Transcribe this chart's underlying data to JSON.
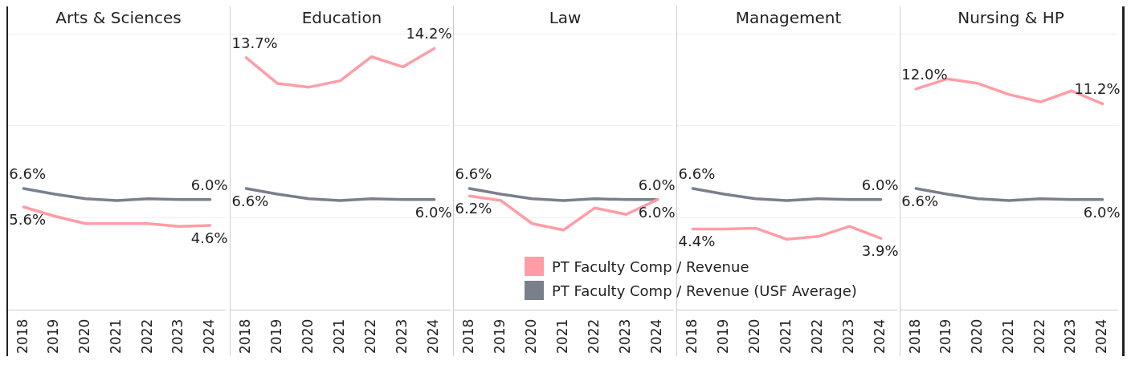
{
  "chart_data": [
    {
      "type": "line",
      "title": "Arts & Sciences",
      "categories": [
        "2018",
        "2019",
        "2020",
        "2021",
        "2022",
        "2023",
        "2024"
      ],
      "ylim": [
        0,
        15
      ],
      "yticks": [
        {
          "value": 0,
          "label": null
        },
        {
          "value": 5,
          "label": null
        },
        {
          "value": 10,
          "label": null
        },
        {
          "value": 15,
          "label": null
        }
      ],
      "grid": "y",
      "tick_labels": "x",
      "legend": false,
      "series": [
        {
          "color": "#ff9da7",
          "values": [
            5.6,
            5.1,
            4.7,
            4.7,
            4.7,
            4.55,
            4.6
          ],
          "value_labels": [
            "5.6%",
            null,
            null,
            null,
            null,
            null,
            "4.6%"
          ]
        },
        {
          "color": "#79808c",
          "values": [
            6.6,
            6.3,
            6.05,
            5.95,
            6.05,
            6.0,
            6.0
          ],
          "value_labels": [
            "6.6%",
            null,
            null,
            null,
            null,
            null,
            "6.0%"
          ]
        }
      ]
    },
    {
      "type": "line",
      "title": "Education",
      "categories": [
        "2018",
        "2019",
        "2020",
        "2021",
        "2022",
        "2023",
        "2024"
      ],
      "ylim": [
        0,
        15
      ],
      "yticks": [
        {
          "value": 0,
          "label": null
        },
        {
          "value": 5,
          "label": null
        },
        {
          "value": 10,
          "label": null
        },
        {
          "value": 15,
          "label": null
        }
      ],
      "grid": "y",
      "tick_labels": "x",
      "legend": false,
      "series": [
        {
          "color": "#ff9da7",
          "values": [
            13.7,
            12.3,
            12.1,
            12.45,
            13.75,
            13.2,
            14.2
          ],
          "value_labels": [
            "13.7%",
            null,
            null,
            null,
            null,
            null,
            "14.2%"
          ]
        },
        {
          "color": "#79808c",
          "values": [
            6.6,
            6.3,
            6.05,
            5.95,
            6.05,
            6.0,
            6.0
          ],
          "value_labels": [
            "6.6%",
            null,
            null,
            null,
            null,
            null,
            "6.0%"
          ]
        }
      ]
    },
    {
      "type": "line",
      "title": "Law",
      "categories": [
        "2018",
        "2019",
        "2020",
        "2021",
        "2022",
        "2023",
        "2024"
      ],
      "ylim": [
        0,
        15
      ],
      "yticks": [
        {
          "value": 0,
          "label": null
        },
        {
          "value": 5,
          "label": null
        },
        {
          "value": 10,
          "label": null
        },
        {
          "value": 15,
          "label": null
        }
      ],
      "grid": "y",
      "tick_labels": "x",
      "legend": "bottom right",
      "series": [
        {
          "name": "PT Faculty Comp / Revenue",
          "color": "#ff9da7",
          "values": [
            6.2,
            5.95,
            4.7,
            4.35,
            5.55,
            5.2,
            6.0
          ],
          "value_labels": [
            "6.2%",
            null,
            null,
            null,
            null,
            null,
            "6.0%"
          ]
        },
        {
          "name": "PT Faculty Comp / Revenue (USF Average)",
          "color": "#79808c",
          "values": [
            6.6,
            6.3,
            6.05,
            5.95,
            6.05,
            6.0,
            6.0
          ],
          "value_labels": [
            "6.6%",
            null,
            null,
            null,
            null,
            null,
            "6.0%"
          ]
        }
      ]
    },
    {
      "type": "line",
      "title": "Management",
      "categories": [
        "2018",
        "2019",
        "2020",
        "2021",
        "2022",
        "2023",
        "2024"
      ],
      "ylim": [
        0,
        15
      ],
      "yticks": [
        {
          "value": 0,
          "label": null
        },
        {
          "value": 5,
          "label": null
        },
        {
          "value": 10,
          "label": null
        },
        {
          "value": 15,
          "label": null
        }
      ],
      "grid": "y",
      "tick_labels": "x",
      "legend": false,
      "series": [
        {
          "color": "#ff9da7",
          "values": [
            4.4,
            4.4,
            4.45,
            3.85,
            4.0,
            4.55,
            3.9
          ],
          "value_labels": [
            "4.4%",
            null,
            null,
            null,
            null,
            null,
            "3.9%"
          ]
        },
        {
          "color": "#79808c",
          "values": [
            6.6,
            6.3,
            6.05,
            5.95,
            6.05,
            6.0,
            6.0
          ],
          "value_labels": [
            "6.6%",
            null,
            null,
            null,
            null,
            null,
            "6.0%"
          ]
        }
      ]
    },
    {
      "type": "line",
      "title": "Nursing & HP",
      "categories": [
        "2018",
        "2019",
        "2020",
        "2021",
        "2022",
        "2023",
        "2024"
      ],
      "ylim": [
        0,
        15
      ],
      "yticks": [
        {
          "value": 0,
          "label": null
        },
        {
          "value": 5,
          "label": null
        },
        {
          "value": 10,
          "label": null
        },
        {
          "value": 15,
          "label": null
        }
      ],
      "grid": "y",
      "tick_labels": "x",
      "legend": false,
      "series": [
        {
          "color": "#ff9da7",
          "values": [
            12.0,
            12.55,
            12.3,
            11.7,
            11.3,
            11.9,
            11.2
          ],
          "value_labels": [
            "12.0%",
            null,
            null,
            null,
            null,
            null,
            "11.2%"
          ]
        },
        {
          "color": "#79808c",
          "values": [
            6.6,
            6.3,
            6.05,
            5.95,
            6.05,
            6.0,
            6.0
          ],
          "value_labels": [
            "6.6%",
            null,
            null,
            null,
            null,
            null,
            "6.0%"
          ]
        }
      ]
    }
  ]
}
